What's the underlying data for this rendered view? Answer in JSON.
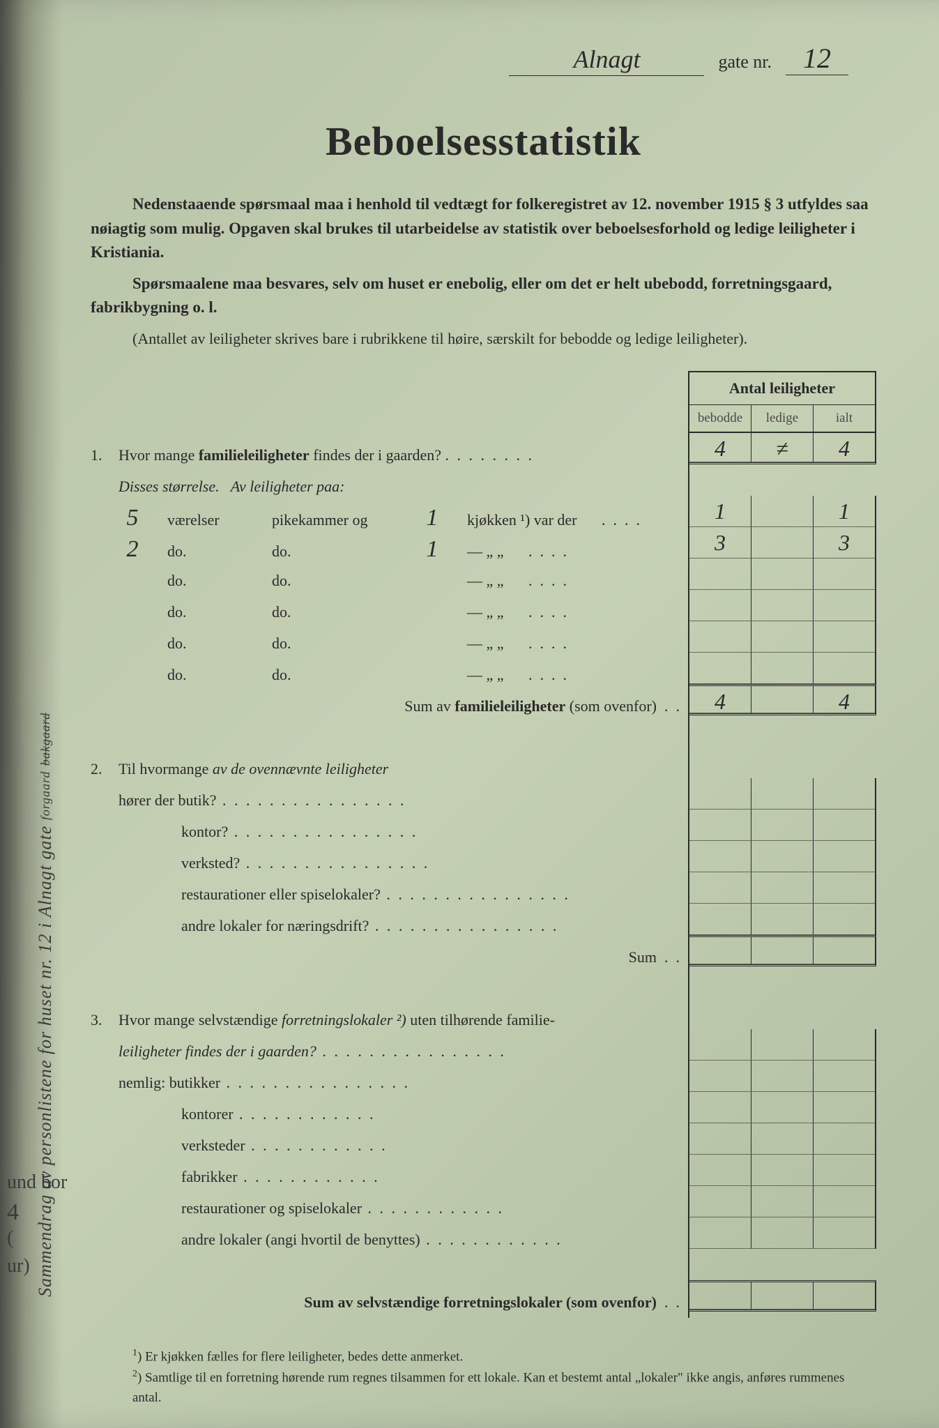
{
  "header": {
    "street_handwritten": "Alnagt",
    "gate_nr_label": "gate nr.",
    "gate_nr_value": "12"
  },
  "title": "Beboelsesstatistik",
  "intro": {
    "p1": "Nedenstaaende spørsmaal maa i henhold til vedtægt for folkeregistret av 12. november 1915 § 3 utfyldes saa nøiagtig som mulig.  Opgaven skal brukes til utarbeidelse av statistik over beboelsesforhold og ledige leiligheter i Kristiania.",
    "p2": "Spørsmaalene maa besvares, selv om huset er enebolig, eller om det er helt ubebodd, forretningsgaard, fabrikbygning o. l.",
    "note": "(Antallet av leiligheter skrives bare i rubrikkene til høire, særskilt for bebodde og ledige leiligheter)."
  },
  "grid": {
    "header": "Antal leiligheter",
    "col1": "bebodde",
    "col2": "ledige",
    "col3": "ialt"
  },
  "q1": {
    "num": "1.",
    "text_a": "Hvor mange ",
    "text_b": "familieleiligheter",
    "text_c": " findes der i gaarden?",
    "row": {
      "bebodde": "4",
      "ledige": "≠",
      "ialt": "4"
    },
    "disses": "Disses størrelse.",
    "av_leil": "Av leiligheter paa:",
    "sizes": [
      {
        "vaer": "5",
        "kj": "1",
        "txt1": "værelser",
        "txt2": "pikekammer og",
        "txt3": "kjøkken ¹) var der",
        "bebodde": "1",
        "ledige": "",
        "ialt": "1"
      },
      {
        "vaer": "2",
        "kj": "1",
        "txt1": "do.",
        "txt2": "do.",
        "txt3": "—      „      „",
        "bebodde": "3",
        "ledige": "",
        "ialt": "3"
      },
      {
        "vaer": "",
        "kj": "",
        "txt1": "do.",
        "txt2": "do.",
        "txt3": "—      „      „",
        "bebodde": "",
        "ledige": "",
        "ialt": ""
      },
      {
        "vaer": "",
        "kj": "",
        "txt1": "do.",
        "txt2": "do.",
        "txt3": "—      „      „",
        "bebodde": "",
        "ledige": "",
        "ialt": ""
      },
      {
        "vaer": "",
        "kj": "",
        "txt1": "do.",
        "txt2": "do.",
        "txt3": "—      „      „",
        "bebodde": "",
        "ledige": "",
        "ialt": ""
      },
      {
        "vaer": "",
        "kj": "",
        "txt1": "do.",
        "txt2": "do.",
        "txt3": "—      „      „",
        "bebodde": "",
        "ledige": "",
        "ialt": ""
      }
    ],
    "sum_label_a": "Sum av ",
    "sum_label_b": "familieleiligheter",
    "sum_label_c": " (som ovenfor)",
    "sum": {
      "bebodde": "4",
      "ledige": "",
      "ialt": "4"
    }
  },
  "q2": {
    "num": "2.",
    "text": "Til hvormange av de ovennævnte leiligheter",
    "lines": [
      "hører der butik?",
      "kontor?",
      "verksted?",
      "restaurationer eller spiselokaler?",
      "andre lokaler for næringsdrift?"
    ],
    "sum_label": "Sum"
  },
  "q3": {
    "num": "3.",
    "text_a": "Hvor mange selvstændige ",
    "text_b": "forretningslokaler ²)",
    "text_c": " uten tilhørende familie-",
    "text_d": "leiligheter findes der i gaarden?",
    "nemlig": "nemlig:",
    "lines": [
      "butikker",
      "kontorer",
      "verksteder",
      "fabrikker",
      "restaurationer og spiselokaler",
      "andre lokaler (angi hvortil de benyttes)"
    ],
    "sum_label": "Sum av selvstændige forretningslokaler (som ovenfor)"
  },
  "footnotes": {
    "f1": "Er kjøkken fælles for flere leiligheter, bedes dette anmerket.",
    "f2": "Samtlige til en forretning hørende rum regnes tilsammen for ett lokale.  Kan et bestemt antal „lokaler\" ikke angis, anføres rummenes antal."
  },
  "side": {
    "text_a": "Sammendrag av personlistene for huset nr. ",
    "hw1": "12",
    "text_b": "  i  ",
    "hw2": "Alnagt",
    "text_c": "     gate  ",
    "strike": "bakgaard",
    "small": "forgaard"
  },
  "margin": {
    "m1": "und bor",
    "m2": "4",
    "m3": "(",
    "m4": "ur)"
  }
}
